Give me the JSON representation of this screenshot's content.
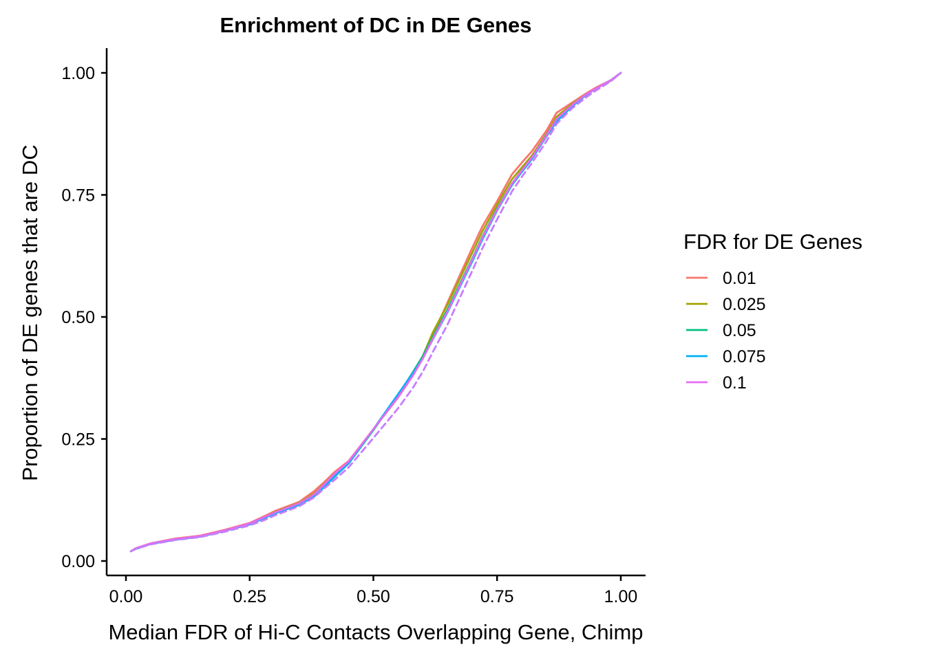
{
  "chart_data": {
    "type": "line",
    "title": "Enrichment of DC in DE Genes",
    "xlabel": "Median FDR of Hi-C Contacts Overlapping Gene, Chimp",
    "ylabel": "Proportion of DE genes that are DC",
    "xlim": [
      0,
      1
    ],
    "ylim": [
      0,
      1
    ],
    "x_ticks": [
      "0.00",
      "0.25",
      "0.50",
      "0.75",
      "1.00"
    ],
    "y_ticks": [
      "0.00",
      "0.25",
      "0.50",
      "0.75",
      "1.00"
    ],
    "grid": false,
    "legend": {
      "title": "FDR for DE Genes",
      "position": "right"
    },
    "x": [
      0.01,
      0.02,
      0.05,
      0.1,
      0.15,
      0.2,
      0.25,
      0.28,
      0.3,
      0.35,
      0.38,
      0.4,
      0.42,
      0.45,
      0.5,
      0.55,
      0.58,
      0.6,
      0.62,
      0.65,
      0.7,
      0.72,
      0.75,
      0.78,
      0.8,
      0.82,
      0.85,
      0.87,
      0.9,
      0.93,
      0.95,
      0.98,
      1.0
    ],
    "series": [
      {
        "name": "0.01",
        "color": "#F8766D",
        "dashed": false,
        "values": [
          0.02,
          0.026,
          0.036,
          0.046,
          0.052,
          0.064,
          0.078,
          0.092,
          0.102,
          0.121,
          0.143,
          0.161,
          0.181,
          0.205,
          0.27,
          0.335,
          0.38,
          0.42,
          0.462,
          0.53,
          0.642,
          0.685,
          0.737,
          0.792,
          0.816,
          0.839,
          0.882,
          0.918,
          0.938,
          0.958,
          0.97,
          0.985,
          1.0
        ]
      },
      {
        "name": "0.025",
        "color": "#A3A500",
        "dashed": false,
        "values": [
          0.02,
          0.026,
          0.036,
          0.045,
          0.051,
          0.063,
          0.077,
          0.09,
          0.1,
          0.119,
          0.138,
          0.157,
          0.177,
          0.203,
          0.27,
          0.336,
          0.382,
          0.42,
          0.468,
          0.526,
          0.632,
          0.675,
          0.73,
          0.782,
          0.806,
          0.83,
          0.875,
          0.91,
          0.935,
          0.956,
          0.968,
          0.984,
          1.0
        ]
      },
      {
        "name": "0.05",
        "color": "#00BF7D",
        "dashed": false,
        "values": [
          0.02,
          0.025,
          0.035,
          0.044,
          0.05,
          0.062,
          0.076,
          0.089,
          0.098,
          0.117,
          0.134,
          0.153,
          0.173,
          0.2,
          0.268,
          0.34,
          0.387,
          0.42,
          0.459,
          0.516,
          0.62,
          0.664,
          0.722,
          0.773,
          0.8,
          0.826,
          0.873,
          0.903,
          0.932,
          0.955,
          0.968,
          0.985,
          1.0
        ]
      },
      {
        "name": "0.075",
        "color": "#00B0F6",
        "dashed": false,
        "values": [
          0.02,
          0.025,
          0.035,
          0.044,
          0.05,
          0.062,
          0.075,
          0.088,
          0.097,
          0.115,
          0.132,
          0.151,
          0.171,
          0.2,
          0.27,
          0.342,
          0.385,
          0.415,
          0.454,
          0.51,
          0.614,
          0.658,
          0.718,
          0.77,
          0.797,
          0.823,
          0.87,
          0.9,
          0.93,
          0.955,
          0.968,
          0.985,
          1.0
        ]
      },
      {
        "name": "0.1",
        "color": "#E76BF3",
        "dashed": false,
        "values": [
          0.02,
          0.026,
          0.036,
          0.045,
          0.051,
          0.063,
          0.077,
          0.09,
          0.099,
          0.118,
          0.136,
          0.156,
          0.177,
          0.204,
          0.27,
          0.336,
          0.38,
          0.415,
          0.455,
          0.512,
          0.618,
          0.662,
          0.72,
          0.773,
          0.8,
          0.826,
          0.872,
          0.905,
          0.933,
          0.956,
          0.968,
          0.985,
          1.0
        ]
      },
      {
        "name": "",
        "color": "#C77CFF",
        "dashed": true,
        "values": [
          0.02,
          0.025,
          0.034,
          0.043,
          0.049,
          0.06,
          0.073,
          0.084,
          0.093,
          0.112,
          0.13,
          0.148,
          0.165,
          0.192,
          0.252,
          0.313,
          0.355,
          0.388,
          0.428,
          0.485,
          0.595,
          0.64,
          0.7,
          0.757,
          0.787,
          0.815,
          0.86,
          0.895,
          0.926,
          0.95,
          0.964,
          0.983,
          1.0
        ]
      }
    ]
  }
}
